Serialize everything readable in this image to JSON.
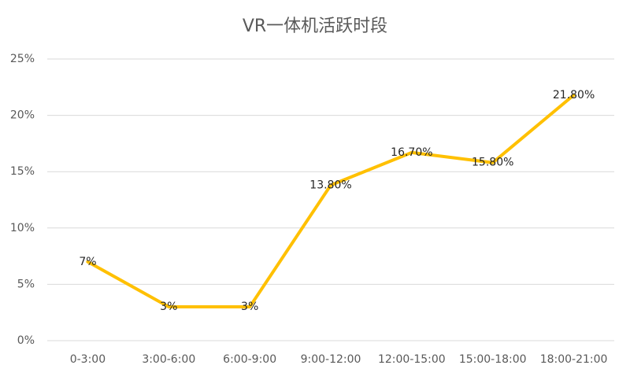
{
  "chart_data": {
    "type": "line",
    "title": "VR一体机活跃时段",
    "categories": [
      "0-3:00",
      "3:00-6:00",
      "6:00-9:00",
      "9:00-12:00",
      "12:00-15:00",
      "15:00-18:00",
      "18:00-21:00"
    ],
    "values": [
      7,
      3,
      3,
      13.8,
      16.7,
      15.8,
      21.8
    ],
    "value_labels": [
      "7%",
      "3%",
      "3%",
      "13.80%",
      "16.70%",
      "15.80%",
      "21.80%"
    ],
    "color": "#FFC000",
    "ylim": [
      0,
      25
    ],
    "yticks": [
      {
        "value": 0,
        "label": "0%"
      },
      {
        "value": 5,
        "label": "5%"
      },
      {
        "value": 10,
        "label": "10%"
      },
      {
        "value": 15,
        "label": "15%"
      },
      {
        "value": 20,
        "label": "20%"
      },
      {
        "value": 25,
        "label": "25%"
      }
    ],
    "grid": true
  }
}
